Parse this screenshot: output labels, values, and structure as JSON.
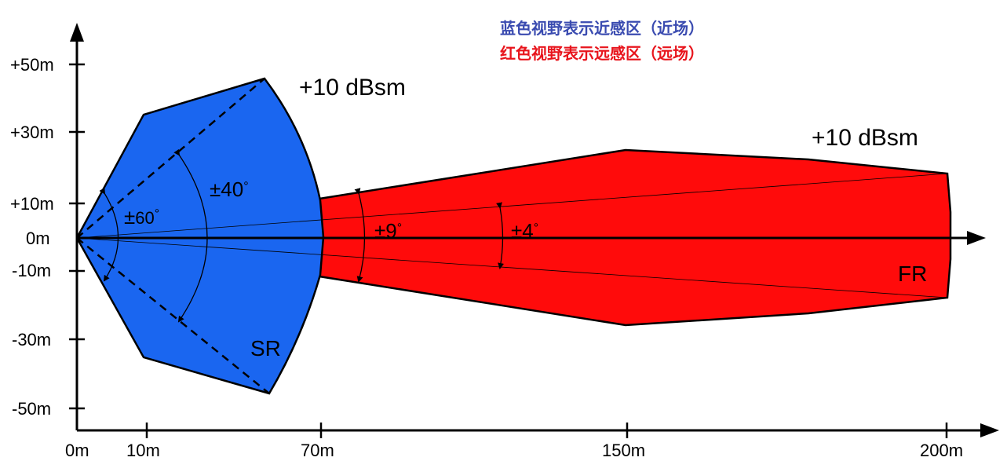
{
  "colors": {
    "near_field": "#1a66f0",
    "far_field": "#ff0b0b",
    "legend_blue": "#3a4bb0",
    "legend_red": "#e8141c",
    "axis": "#000000"
  },
  "legend": {
    "blue_line": "蓝色视野表示近感区（近场）",
    "red_line": "红色视野表示远感区（远场）"
  },
  "y_axis": {
    "ticks": [
      "+50m",
      "+30m",
      "+10m",
      "0m",
      "-10m",
      "-30m",
      "-50m"
    ]
  },
  "x_axis": {
    "ticks": [
      "0m",
      "10m",
      "70m",
      "150m",
      "200m"
    ]
  },
  "zones": {
    "short_range": {
      "label": "SR",
      "rcs": "+10 dBsm",
      "angle_wide": "±60°",
      "angle_mid": "±40°"
    },
    "far_range": {
      "label": "FR",
      "rcs": "+10 dBsm",
      "angle_wide": "±9°",
      "angle_narrow": "±4°"
    }
  },
  "angle_labels": {
    "a60": {
      "pm": "±",
      "num": "60",
      "deg": "°"
    },
    "a40": {
      "pm": "±",
      "num": "40",
      "deg": "°"
    },
    "a9": {
      "pm": "±",
      "num": "9",
      "deg": "°"
    },
    "a4": {
      "pm": "±",
      "num": "4",
      "deg": "°"
    }
  }
}
